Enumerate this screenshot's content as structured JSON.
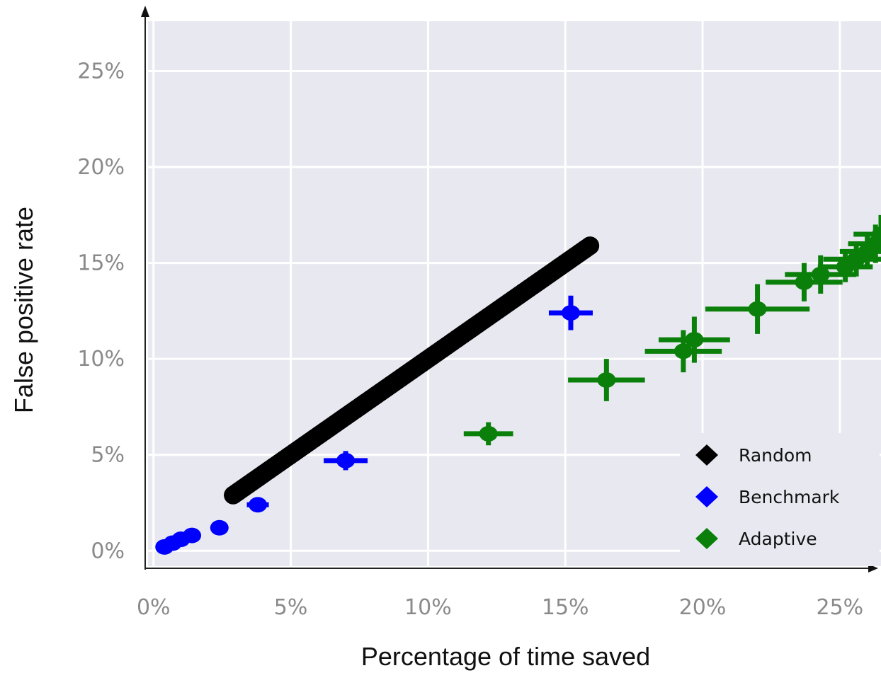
{
  "chart_data": {
    "type": "scatter",
    "title": "",
    "xlabel": "Percentage of time saved",
    "ylabel": "False positive rate",
    "xlim": [
      -0.2,
      26.5
    ],
    "ylim": [
      -0.8,
      27.6
    ],
    "xticks": [
      {
        "value": 0,
        "label": "0%"
      },
      {
        "value": 5,
        "label": "5%"
      },
      {
        "value": 10,
        "label": "10%"
      },
      {
        "value": 15,
        "label": "15%"
      },
      {
        "value": 20,
        "label": "20%"
      },
      {
        "value": 25,
        "label": "25%"
      }
    ],
    "yticks": [
      {
        "value": 0,
        "label": "0%"
      },
      {
        "value": 5,
        "label": "5%"
      },
      {
        "value": 10,
        "label": "10%"
      },
      {
        "value": 15,
        "label": "15%"
      },
      {
        "value": 20,
        "label": "20%"
      },
      {
        "value": 25,
        "label": "25%"
      }
    ],
    "grid": true,
    "legend_position": "bottom-right",
    "colors": {
      "plot_background": "#e8e8f0",
      "grid": "#ffffff",
      "axis": "#222222",
      "Random": "#000000",
      "Benchmark": "#0000ff",
      "Adaptive": "#0a800a"
    },
    "series": [
      {
        "name": "Random",
        "style": "dense-line",
        "x_range": [
          2.9,
          15.9
        ],
        "points": [
          [
            2.9,
            2.9
          ],
          [
            15.9,
            15.9
          ]
        ]
      },
      {
        "name": "Benchmark",
        "points": [
          {
            "x": 0.4,
            "y": 0.2,
            "xerr": 0.2,
            "yerr": 0.2
          },
          {
            "x": 0.7,
            "y": 0.4,
            "xerr": 0.2,
            "yerr": 0.2
          },
          {
            "x": 1.0,
            "y": 0.6,
            "xerr": 0.2,
            "yerr": 0.2
          },
          {
            "x": 1.4,
            "y": 0.8,
            "xerr": 0.2,
            "yerr": 0.2
          },
          {
            "x": 2.4,
            "y": 1.2,
            "xerr": 0.3,
            "yerr": 0.2
          },
          {
            "x": 3.8,
            "y": 2.4,
            "xerr": 0.4,
            "yerr": 0.3
          },
          {
            "x": 7.0,
            "y": 4.7,
            "xerr": 0.8,
            "yerr": 0.5
          },
          {
            "x": 15.2,
            "y": 12.4,
            "xerr": 0.8,
            "yerr": 0.9
          }
        ]
      },
      {
        "name": "Adaptive",
        "points": [
          {
            "x": 12.2,
            "y": 6.1,
            "xerr": 0.9,
            "yerr": 0.6
          },
          {
            "x": 16.5,
            "y": 8.9,
            "xerr": 1.4,
            "yerr": 1.1
          },
          {
            "x": 19.3,
            "y": 10.4,
            "xerr": 1.4,
            "yerr": 1.1
          },
          {
            "x": 19.7,
            "y": 11.0,
            "xerr": 1.3,
            "yerr": 1.2
          },
          {
            "x": 22.0,
            "y": 12.6,
            "xerr": 1.9,
            "yerr": 1.3
          },
          {
            "x": 23.7,
            "y": 14.0,
            "xerr": 1.4,
            "yerr": 1.0
          },
          {
            "x": 24.3,
            "y": 14.4,
            "xerr": 1.3,
            "yerr": 1.0
          },
          {
            "x": 25.2,
            "y": 14.8,
            "xerr": 1.0,
            "yerr": 0.8
          },
          {
            "x": 25.6,
            "y": 15.2,
            "xerr": 1.2,
            "yerr": 0.9
          },
          {
            "x": 26.0,
            "y": 15.6,
            "xerr": 1.0,
            "yerr": 0.9
          },
          {
            "x": 26.3,
            "y": 16.0,
            "xerr": 1.0,
            "yerr": 1.0
          },
          {
            "x": 26.5,
            "y": 16.5,
            "xerr": 1.0,
            "yerr": 1.0
          }
        ]
      }
    ],
    "legend": [
      {
        "label": "Random",
        "color": "#000000"
      },
      {
        "label": "Benchmark",
        "color": "#0000ff"
      },
      {
        "label": "Adaptive",
        "color": "#0a800a"
      }
    ]
  }
}
